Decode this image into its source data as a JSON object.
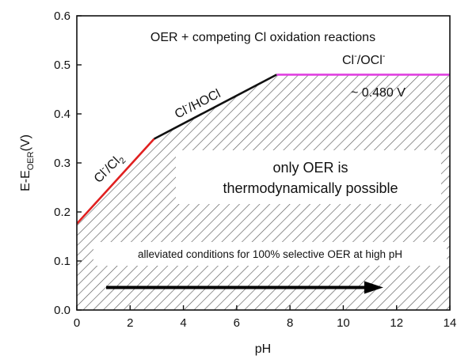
{
  "chart_data": {
    "type": "line",
    "xlabel": "pH",
    "ylabel_main": "E-E",
    "ylabel_sub": "OER",
    "ylabel_unit": "(V)",
    "xlim": [
      0,
      14
    ],
    "ylim": [
      0.0,
      0.6
    ],
    "xticks": [
      "0",
      "2",
      "4",
      "6",
      "8",
      "10",
      "12",
      "14"
    ],
    "yticks": [
      "0.0",
      "0.1",
      "0.2",
      "0.3",
      "0.4",
      "0.5",
      "0.6"
    ],
    "series": [
      {
        "name": "Cl-/Cl2",
        "color": "#e02020",
        "x": [
          0,
          2.9
        ],
        "y": [
          0.176,
          0.349
        ]
      },
      {
        "name": "Cl-/HOCl",
        "color": "#111111",
        "x": [
          2.9,
          7.5
        ],
        "y": [
          0.349,
          0.48
        ]
      },
      {
        "name": "Cl-/OCl-",
        "color": "#e040e0",
        "x": [
          7.5,
          14
        ],
        "y": [
          0.48,
          0.48
        ]
      }
    ],
    "region": {
      "fill": "hatched",
      "below_boundary": true
    },
    "annotations": {
      "top": "OER + competing Cl oxidation reactions",
      "cl2_label": {
        "base": "Cl",
        "sup": "-",
        "mid": "/Cl",
        "sub": "2"
      },
      "hocl_label": {
        "base": "Cl",
        "sup": "-",
        "rest": "/HOCl"
      },
      "ocl_label": {
        "base": "Cl",
        "sup": "-",
        "mid": "/OCl",
        "sup2": "-"
      },
      "plateau_value": "~ 0.480 V",
      "box_line1": "only OER is",
      "box_line2": "thermodynamically possible",
      "arrow_text": "alleviated conditions for 100% selective OER at high pH",
      "arrow": {
        "x_start": 1.1,
        "x_end": 11.5,
        "y": 0.046
      }
    }
  }
}
